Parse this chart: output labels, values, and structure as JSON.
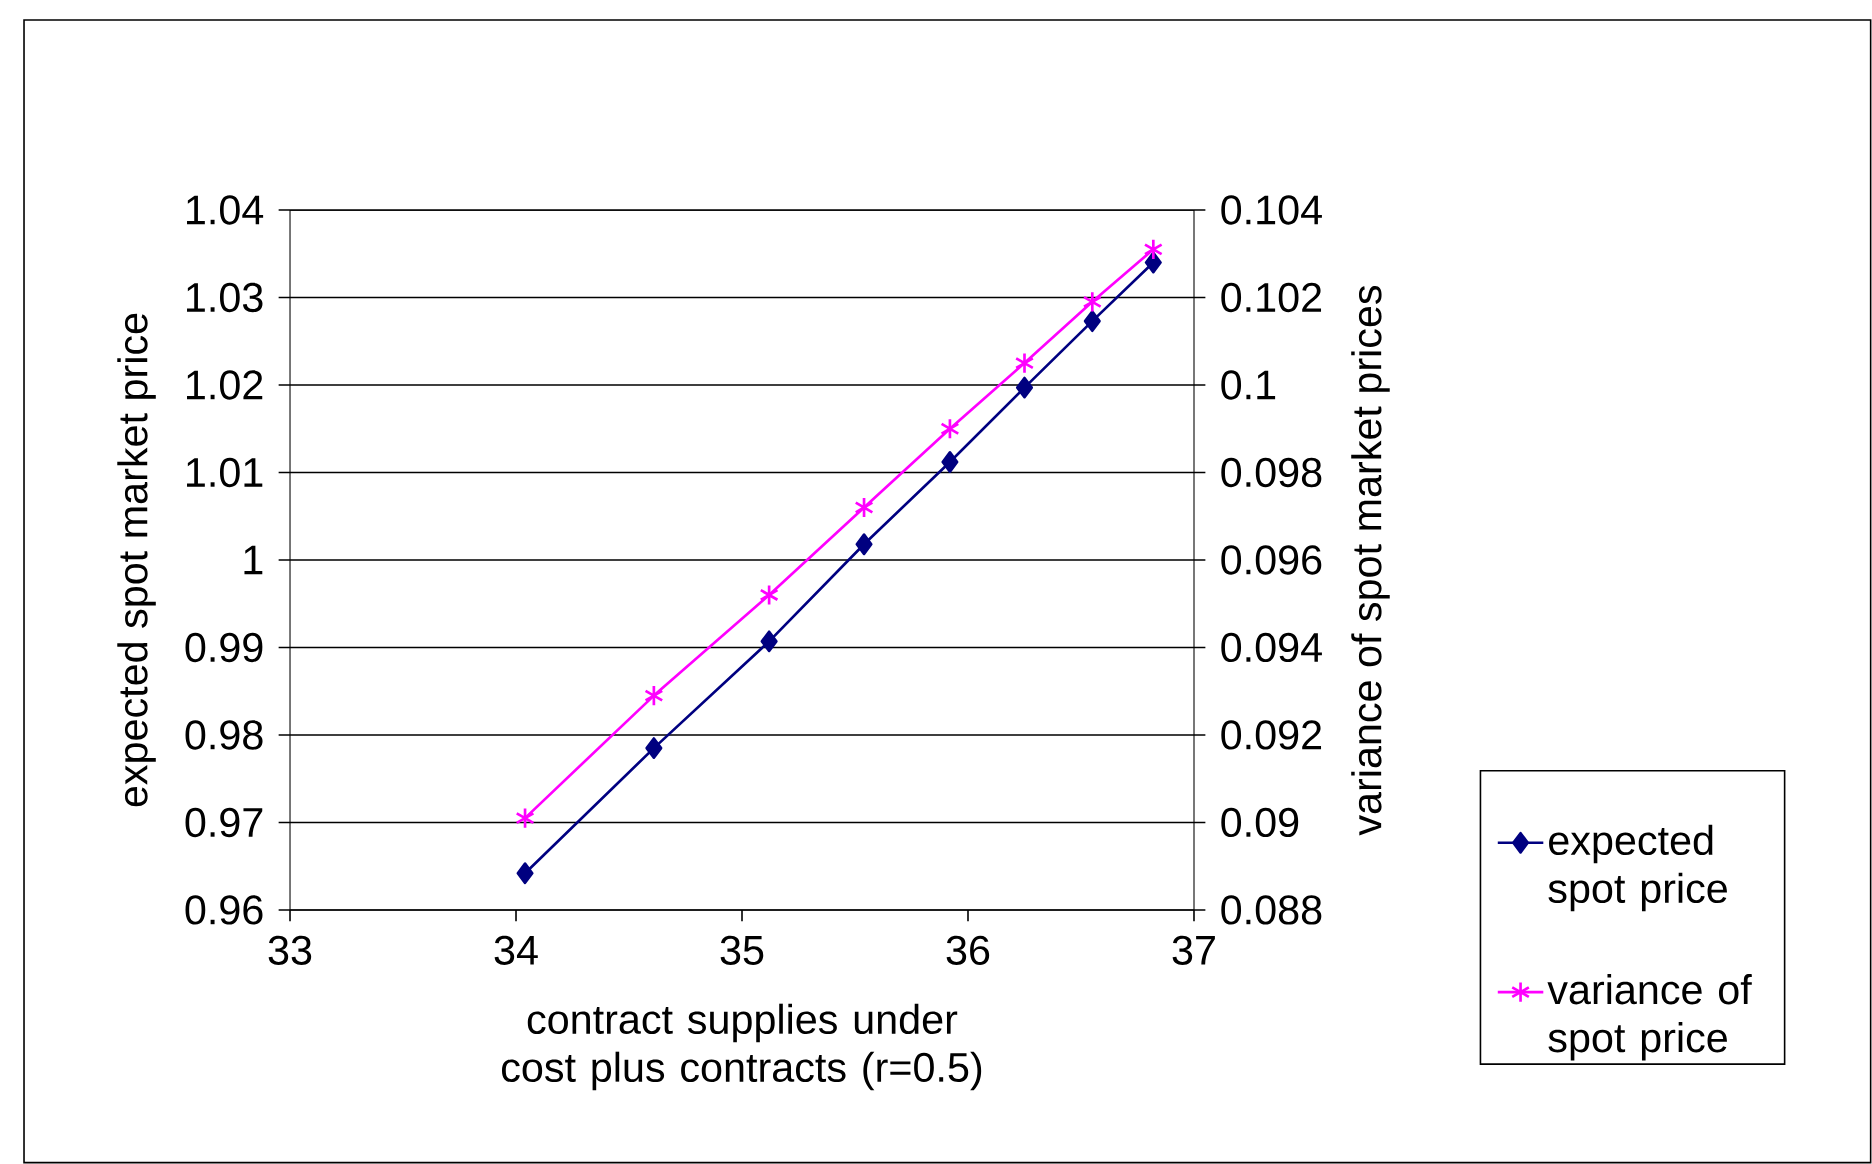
{
  "chart_data": {
    "type": "line",
    "xlabel": "contract supplies under cost plus contracts (r=0.5)",
    "ylabel": "expected spot market price",
    "y2label": "variance of spot market prices",
    "xlim": [
      33,
      37
    ],
    "xticks": [
      33,
      34,
      35,
      36,
      37
    ],
    "ylim": [
      0.96,
      1.04
    ],
    "yticks": [
      0.96,
      0.97,
      0.98,
      0.99,
      1,
      1.01,
      1.02,
      1.03,
      1.04
    ],
    "y2lim": [
      0.088,
      0.104
    ],
    "y2ticks": [
      0.088,
      0.09,
      0.092,
      0.094,
      0.096,
      0.098,
      0.1,
      0.102,
      0.104
    ],
    "grid": "y",
    "legend": "bottom right",
    "series": [
      {
        "name": "expected spot price",
        "color": "#000080",
        "marker": "diamond",
        "x": [
          34.04,
          34.61,
          35.12,
          35.54,
          35.92,
          36.25,
          36.55,
          36.82
        ],
        "values": [
          0.9642,
          0.9785,
          0.9907,
          1.0018,
          1.0112,
          1.0197,
          1.0273,
          1.034
        ]
      },
      {
        "name": "variance of spot price",
        "color": "#ff00ff",
        "marker": "cross",
        "axis": "y2",
        "x": [
          34.04,
          34.61,
          35.12,
          35.54,
          35.92,
          36.25,
          36.55,
          36.82
        ],
        "values": [
          0.0901,
          0.0929,
          0.0952,
          0.0972,
          0.099,
          0.1005,
          0.1019,
          0.1031
        ]
      }
    ]
  }
}
